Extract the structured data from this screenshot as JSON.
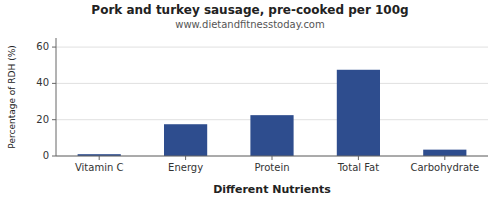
{
  "chart_data": {
    "type": "bar",
    "title": "Pork and turkey sausage, pre-cooked per 100g",
    "subtitle": "www.dietandfitnesstoday.com",
    "xlabel": "Different Nutrients",
    "ylabel": "Percentage of RDH (%)",
    "categories": [
      "Vitamin C",
      "Energy",
      "Protein",
      "Total Fat",
      "Carbohydrate"
    ],
    "values": [
      1.0,
      17.5,
      22.5,
      47.5,
      3.5
    ],
    "color": "#2e4d8e",
    "ylim": [
      0,
      65
    ],
    "yticks": [
      0,
      20,
      40,
      60
    ],
    "grid": true
  }
}
